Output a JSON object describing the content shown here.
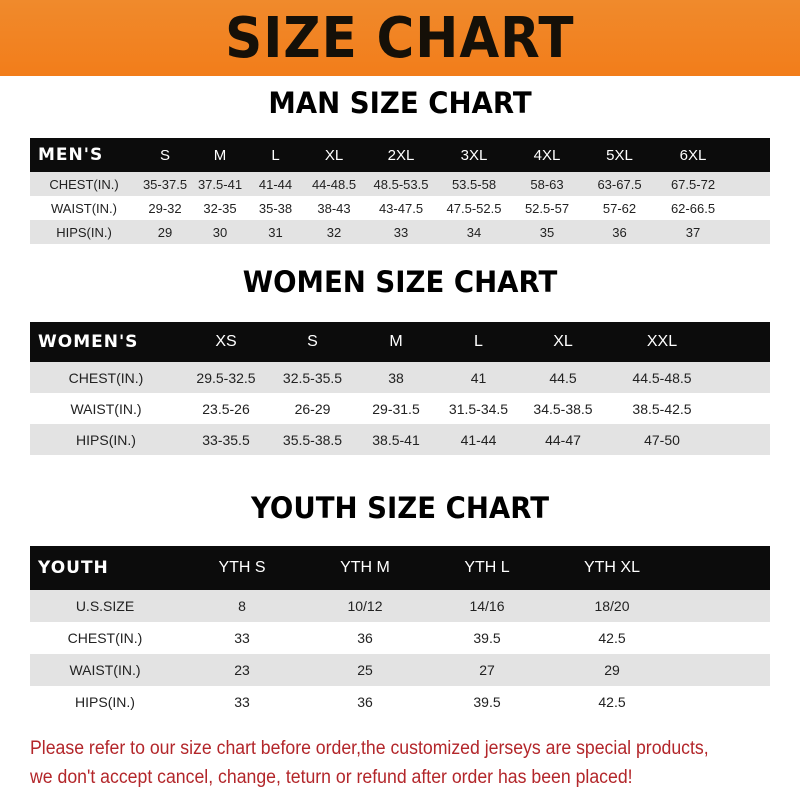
{
  "banner": {
    "title": "SIZE CHART",
    "background": "#f27d1a"
  },
  "men": {
    "title": "MAN SIZE CHART",
    "header": [
      "MEN'S",
      "S",
      "M",
      "L",
      "XL",
      "2XL",
      "3XL",
      "4XL",
      "5XL",
      "6XL"
    ],
    "rows": [
      [
        "CHEST(IN.)",
        "35-37.5",
        "37.5-41",
        "41-44",
        "44-48.5",
        "48.5-53.5",
        "53.5-58",
        "58-63",
        "63-67.5",
        "67.5-72"
      ],
      [
        "WAIST(IN.)",
        "29-32",
        "32-35",
        "35-38",
        "38-43",
        "43-47.5",
        "47.5-52.5",
        "52.5-57",
        "57-62",
        "62-66.5"
      ],
      [
        "HIPS(IN.)",
        "29",
        "30",
        "31",
        "32",
        "33",
        "34",
        "35",
        "36",
        "37"
      ]
    ]
  },
  "women": {
    "title": "WOMEN SIZE CHART",
    "header": [
      "WOMEN'S",
      "XS",
      "S",
      "M",
      "L",
      "XL",
      "XXL"
    ],
    "rows": [
      [
        "CHEST(IN.)",
        "29.5-32.5",
        "32.5-35.5",
        "38",
        "41",
        "44.5",
        "44.5-48.5"
      ],
      [
        "WAIST(IN.)",
        "23.5-26",
        "26-29",
        "29-31.5",
        "31.5-34.5",
        "34.5-38.5",
        "38.5-42.5"
      ],
      [
        "HIPS(IN.)",
        "33-35.5",
        "35.5-38.5",
        "38.5-41",
        "41-44",
        "44-47",
        "47-50"
      ]
    ]
  },
  "youth": {
    "title": "YOUTH SIZE CHART",
    "header": [
      "YOUTH",
      "YTH S",
      "YTH M",
      "YTH L",
      "YTH XL"
    ],
    "rows": [
      [
        "U.S.SIZE",
        "8",
        "10/12",
        "14/16",
        "18/20"
      ],
      [
        "CHEST(IN.)",
        "33",
        "36",
        "39.5",
        "42.5"
      ],
      [
        "WAIST(IN.)",
        "23",
        "25",
        "27",
        "29"
      ],
      [
        "HIPS(IN.)",
        "33",
        "36",
        "39.5",
        "42.5"
      ]
    ]
  },
  "note": {
    "line1": "Please refer to our size chart before order,the customized jerseys are special products,",
    "line2": "we don't accept cancel, change, teturn or refund after order has been placed!",
    "color": "#b3262a"
  }
}
